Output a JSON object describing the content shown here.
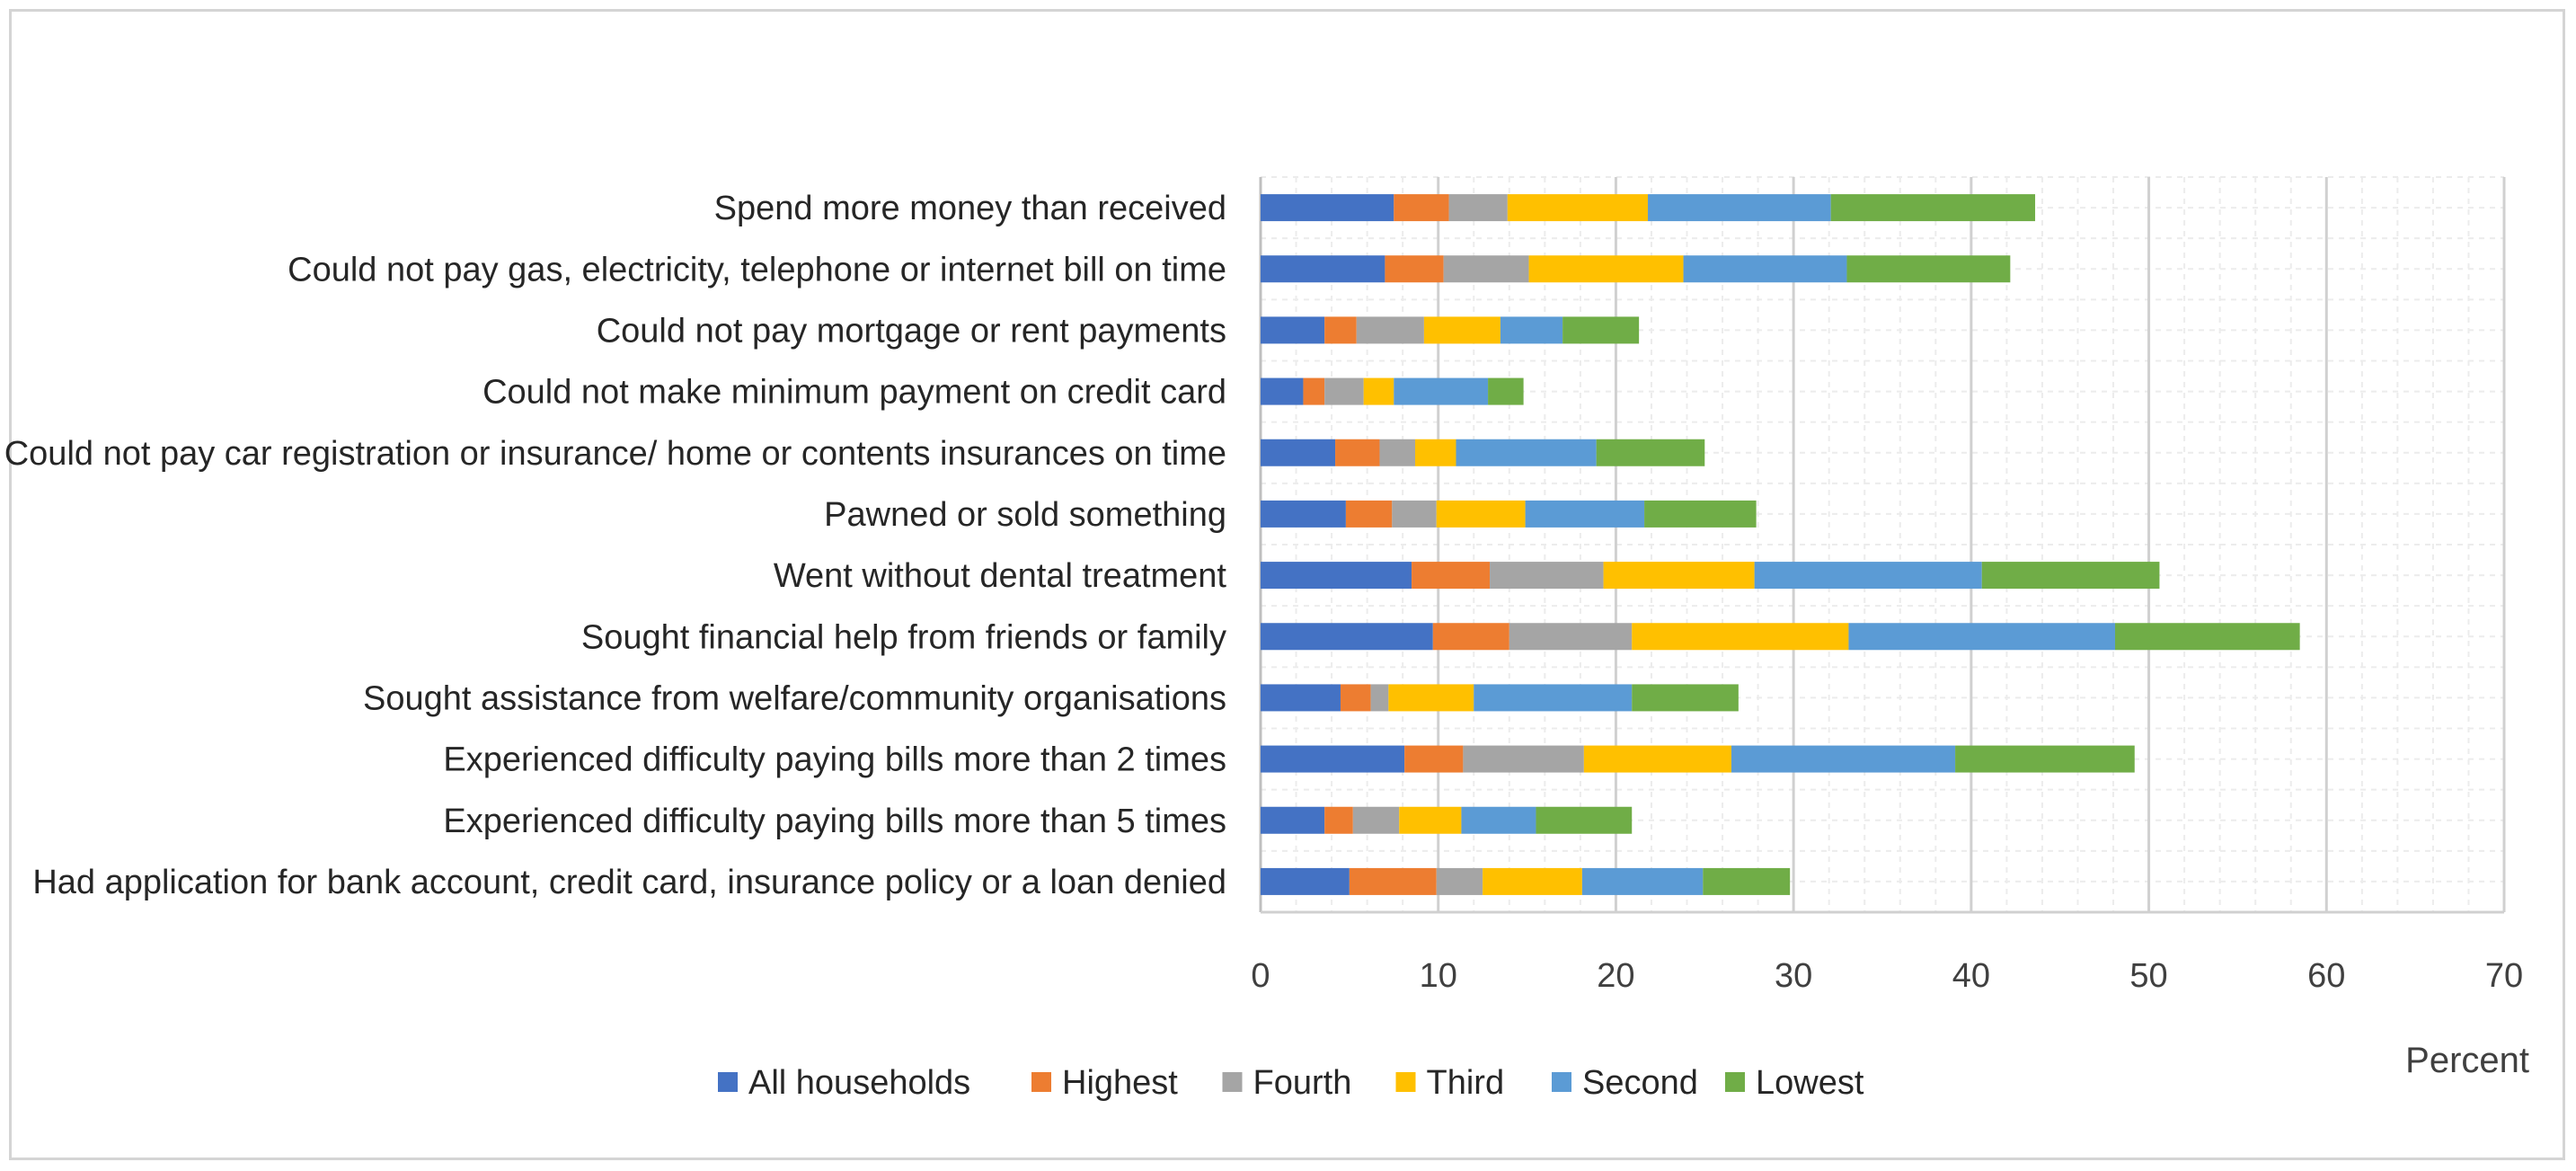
{
  "chart_data": {
    "type": "bar",
    "orientation": "horizontal",
    "stacked": true,
    "title": "",
    "xlabel": "Percent",
    "ylabel": "",
    "xlim": [
      0,
      70
    ],
    "xticks": [
      0,
      10,
      20,
      30,
      40,
      50,
      60,
      70
    ],
    "grid": true,
    "legend_position": "bottom",
    "categories": [
      "Spend more money than received",
      "Could not pay gas, electricity, telephone or internet bill on time",
      "Could not pay mortgage or rent payments",
      "Could not make minimum payment on credit card",
      "Could not pay car registration or insurance/ home or contents insurances on time",
      "Pawned or sold something",
      "Went without dental treatment",
      "Sought financial help from friends or family",
      "Sought assistance from welfare/community organisations",
      "Experienced difficulty paying bills more than 2 times",
      "Experienced difficulty paying bills more than 5 times",
      "Had application for bank account, credit card, insurance policy or a loan denied"
    ],
    "series": [
      {
        "name": "All households",
        "color": "#4472C4",
        "values": [
          7.5,
          7.0,
          3.6,
          2.4,
          4.2,
          4.8,
          8.5,
          9.7,
          4.5,
          8.1,
          3.6,
          5.0
        ]
      },
      {
        "name": "Highest",
        "color": "#ED7D31",
        "values": [
          3.1,
          3.3,
          1.8,
          1.2,
          2.5,
          2.6,
          4.4,
          4.3,
          1.7,
          3.3,
          1.6,
          4.9
        ]
      },
      {
        "name": "Fourth",
        "color": "#A5A5A5",
        "values": [
          3.3,
          4.8,
          3.8,
          2.2,
          2.0,
          2.5,
          6.4,
          6.9,
          1.0,
          6.8,
          2.6,
          2.6
        ]
      },
      {
        "name": "Third",
        "color": "#FFC000",
        "values": [
          7.9,
          8.7,
          4.3,
          1.7,
          2.3,
          5.0,
          8.5,
          12.2,
          4.8,
          8.3,
          3.5,
          5.6
        ]
      },
      {
        "name": "Second",
        "color": "#5B9BD5",
        "values": [
          10.3,
          9.2,
          3.5,
          5.3,
          7.9,
          6.7,
          12.8,
          15.0,
          8.9,
          12.6,
          4.2,
          6.8
        ]
      },
      {
        "name": "Lowest",
        "color": "#70AD47",
        "values": [
          11.5,
          9.2,
          4.3,
          2.0,
          6.1,
          6.3,
          10.0,
          10.4,
          6.0,
          10.1,
          5.4,
          4.9
        ]
      }
    ]
  }
}
